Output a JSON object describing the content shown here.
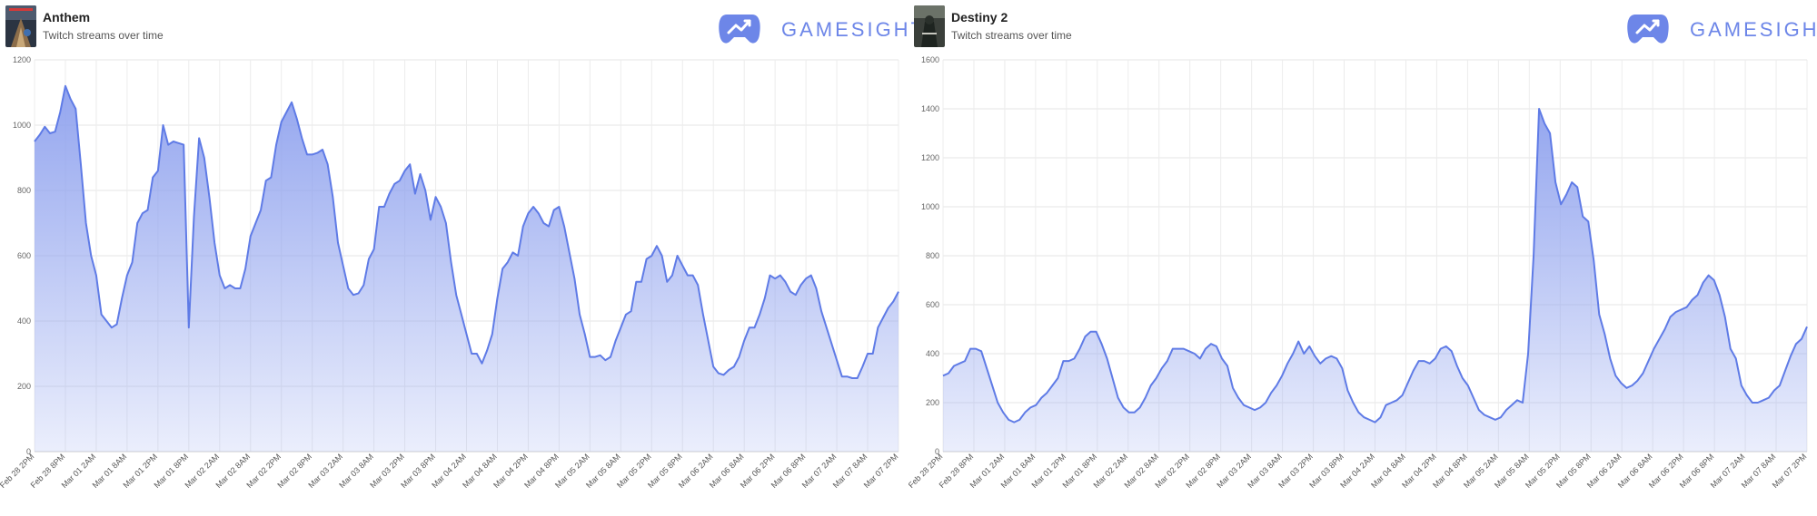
{
  "brand": {
    "name": "GAMESIGHT",
    "icon": "gamepad-trend-icon",
    "color": "#6d86e8"
  },
  "panels": [
    {
      "title": "Anthem",
      "subtitle": "Twitch streams over time",
      "thumbnail_icon": "anthem-cover-icon"
    },
    {
      "title": "Destiny 2",
      "subtitle": "Twitch streams over time",
      "thumbnail_icon": "destiny-2-cover-icon"
    }
  ],
  "chart_data": [
    {
      "type": "area",
      "title": "Anthem",
      "subtitle": "Twitch streams over time",
      "xlabel": "",
      "ylabel": "",
      "ylim": [
        0,
        1200
      ],
      "yticks": [
        0,
        200,
        400,
        600,
        800,
        1000,
        1200
      ],
      "grid": true,
      "line_color": "#5f7be6",
      "fill_color": "#8ea1ee",
      "x_tick_labels": [
        "Feb 28 2PM",
        "Feb 28 8PM",
        "Mar 01 2AM",
        "Mar 01 8AM",
        "Mar 01 2PM",
        "Mar 01 8PM",
        "Mar 02 2AM",
        "Mar 02 8AM",
        "Mar 02 2PM",
        "Mar 02 8PM",
        "Mar 03 2AM",
        "Mar 03 8AM",
        "Mar 03 2PM",
        "Mar 03 8PM",
        "Mar 04 2AM",
        "Mar 04 8AM",
        "Mar 04 2PM",
        "Mar 04 8PM",
        "Mar 05 2AM",
        "Mar 05 8AM",
        "Mar 05 2PM",
        "Mar 05 8PM",
        "Mar 06 2AM",
        "Mar 06 8AM",
        "Mar 06 2PM",
        "Mar 06 8PM",
        "Mar 07 2AM",
        "Mar 07 8AM",
        "Mar 07 2PM"
      ],
      "x_start": "Feb 28 2PM",
      "x_step_hours": 1,
      "values": [
        950,
        970,
        995,
        975,
        980,
        1040,
        1120,
        1080,
        1050,
        880,
        700,
        600,
        540,
        420,
        400,
        380,
        390,
        470,
        540,
        580,
        700,
        730,
        740,
        840,
        860,
        1000,
        940,
        950,
        945,
        940,
        380,
        720,
        960,
        900,
        780,
        640,
        540,
        500,
        510,
        500,
        500,
        560,
        660,
        700,
        740,
        830,
        840,
        940,
        1010,
        1040,
        1070,
        1020,
        960,
        910,
        910,
        915,
        925,
        880,
        780,
        640,
        570,
        500,
        480,
        485,
        510,
        590,
        620,
        750,
        750,
        790,
        820,
        830,
        860,
        880,
        790,
        850,
        800,
        710,
        780,
        750,
        700,
        580,
        480,
        420,
        360,
        300,
        300,
        270,
        310,
        360,
        470,
        560,
        580,
        610,
        600,
        690,
        730,
        750,
        730,
        700,
        690,
        740,
        750,
        690,
        610,
        530,
        420,
        360,
        290,
        290,
        295,
        280,
        290,
        340,
        380,
        420,
        430,
        520,
        520,
        590,
        600,
        630,
        600,
        520,
        540,
        600,
        570,
        540,
        540,
        510,
        420,
        340,
        260,
        240,
        235,
        250,
        260,
        290,
        340,
        380,
        380,
        420,
        470,
        540,
        530,
        540,
        520,
        490,
        480,
        510,
        530,
        540,
        500,
        430,
        380,
        330,
        280,
        230,
        230,
        225,
        225,
        260,
        300,
        300,
        380,
        410,
        440,
        460,
        490
      ],
      "series": [
        {
          "name": "",
          "values": "values"
        }
      ]
    },
    {
      "type": "area",
      "title": "Destiny 2",
      "subtitle": "Twitch streams over time",
      "xlabel": "",
      "ylabel": "",
      "ylim": [
        0,
        1600
      ],
      "yticks": [
        0,
        200,
        400,
        600,
        800,
        1000,
        1200,
        1400,
        1600
      ],
      "grid": true,
      "line_color": "#5f7be6",
      "fill_color": "#8ea1ee",
      "x_tick_labels": [
        "Feb 28 2PM",
        "Feb 28 8PM",
        "Mar 01 2AM",
        "Mar 01 8AM",
        "Mar 01 2PM",
        "Mar 01 8PM",
        "Mar 02 2AM",
        "Mar 02 8AM",
        "Mar 02 2PM",
        "Mar 02 8PM",
        "Mar 03 2AM",
        "Mar 03 8AM",
        "Mar 03 2PM",
        "Mar 03 8PM",
        "Mar 04 2AM",
        "Mar 04 8AM",
        "Mar 04 2PM",
        "Mar 04 8PM",
        "Mar 05 2AM",
        "Mar 05 8AM",
        "Mar 05 2PM",
        "Mar 05 8PM",
        "Mar 06 2AM",
        "Mar 06 8AM",
        "Mar 06 2PM",
        "Mar 06 8PM",
        "Mar 07 2AM",
        "Mar 07 8AM",
        "Mar 07 2PM"
      ],
      "x_start": "Feb 28 2PM",
      "x_step_hours": 1,
      "values": [
        310,
        320,
        350,
        360,
        370,
        420,
        420,
        410,
        340,
        270,
        200,
        160,
        130,
        120,
        130,
        160,
        180,
        190,
        220,
        240,
        270,
        300,
        370,
        370,
        380,
        420,
        470,
        490,
        490,
        440,
        380,
        300,
        220,
        180,
        160,
        160,
        180,
        220,
        270,
        300,
        340,
        370,
        420,
        420,
        420,
        410,
        400,
        380,
        420,
        440,
        430,
        380,
        350,
        260,
        220,
        190,
        180,
        170,
        180,
        200,
        240,
        270,
        310,
        360,
        400,
        450,
        400,
        430,
        390,
        360,
        380,
        390,
        380,
        340,
        250,
        200,
        160,
        140,
        130,
        120,
        140,
        190,
        200,
        210,
        230,
        280,
        330,
        370,
        370,
        360,
        380,
        420,
        430,
        410,
        350,
        300,
        270,
        220,
        170,
        150,
        140,
        130,
        140,
        170,
        190,
        210,
        200,
        400,
        800,
        1400,
        1340,
        1300,
        1100,
        1010,
        1050,
        1100,
        1080,
        960,
        940,
        780,
        560,
        480,
        380,
        310,
        280,
        260,
        270,
        290,
        320,
        370,
        420,
        460,
        500,
        550,
        570,
        580,
        590,
        620,
        640,
        690,
        720,
        700,
        640,
        550,
        420,
        380,
        270,
        230,
        200,
        200,
        210,
        220,
        250,
        270,
        330,
        390,
        440,
        460,
        510
      ],
      "series": [
        {
          "name": "",
          "values": "values"
        }
      ]
    }
  ]
}
